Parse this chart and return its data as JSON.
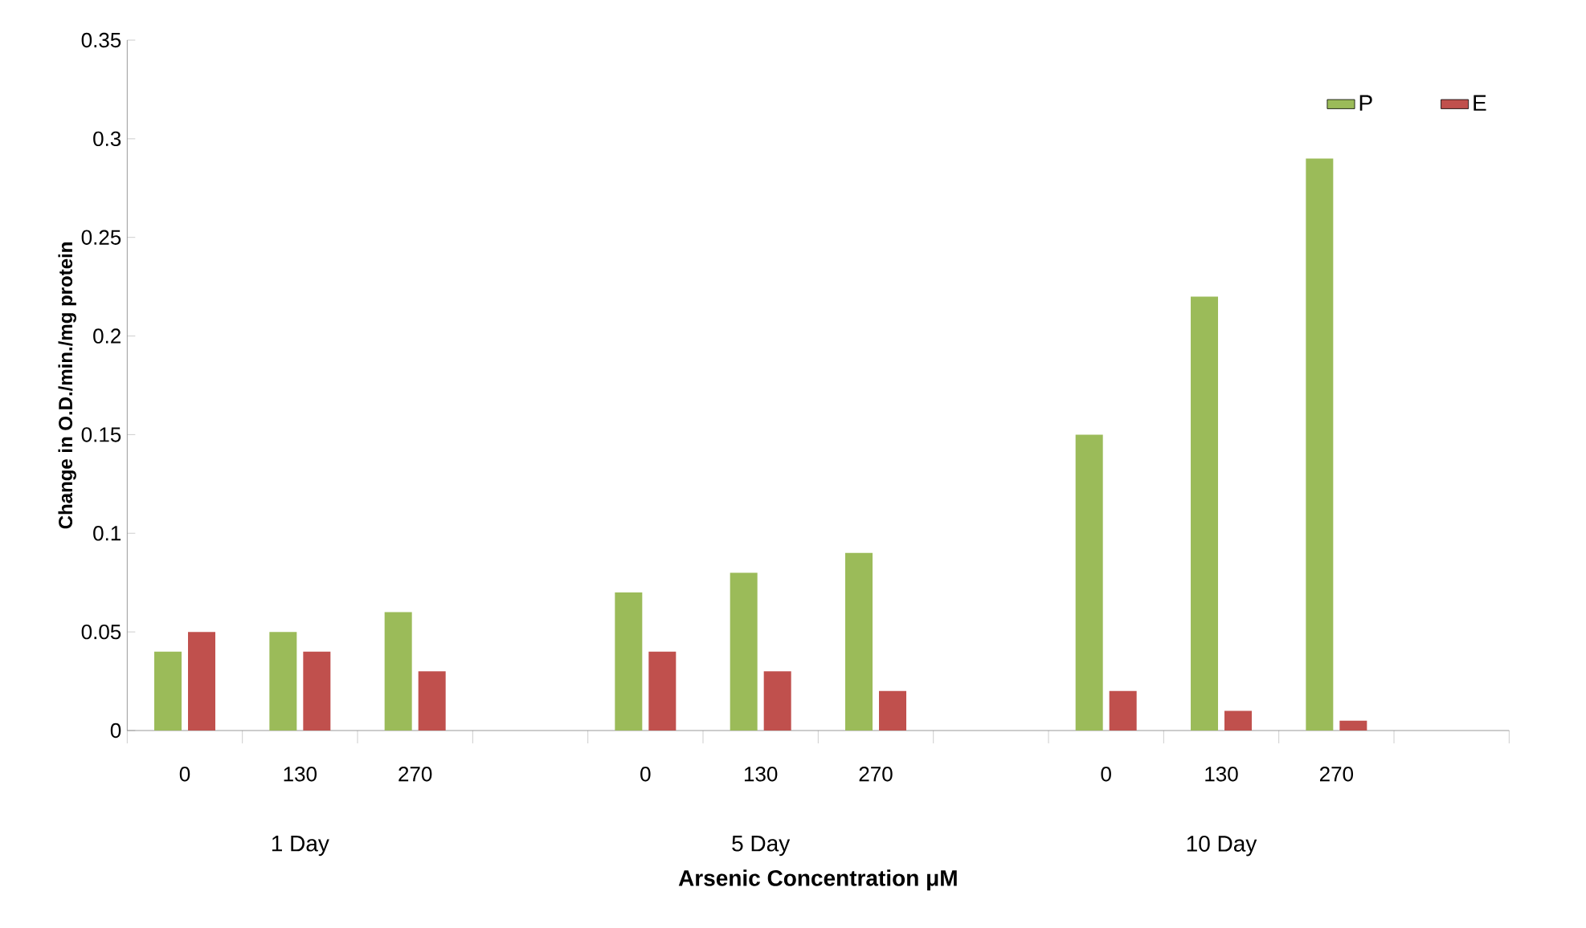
{
  "chart_data": {
    "type": "bar",
    "xlabel": "Arsenic Concentration μM",
    "ylabel": "Change in O.D./min./mg protein",
    "categories": [
      "0",
      "130",
      "270",
      null,
      "0",
      "130",
      "270",
      null,
      "0",
      "130",
      "270",
      null
    ],
    "series": [
      {
        "name": "P",
        "color": "#9bbb59",
        "values": [
          0.04,
          0.05,
          0.06,
          null,
          0.07,
          0.08,
          0.09,
          null,
          0.15,
          0.22,
          0.29,
          null
        ]
      },
      {
        "name": "E",
        "color": "#c0504d",
        "values": [
          0.05,
          0.04,
          0.03,
          null,
          0.04,
          0.03,
          0.02,
          null,
          0.02,
          0.01,
          0.005,
          null
        ]
      }
    ],
    "annotations": [
      "1 Day",
      "5 Day",
      "10 Day"
    ],
    "ylim": [
      0,
      0.35
    ],
    "yticks": [
      0,
      0.05,
      0.1,
      0.15,
      0.2,
      0.25,
      0.3,
      0.35
    ],
    "grid": false,
    "legend": "top right"
  }
}
